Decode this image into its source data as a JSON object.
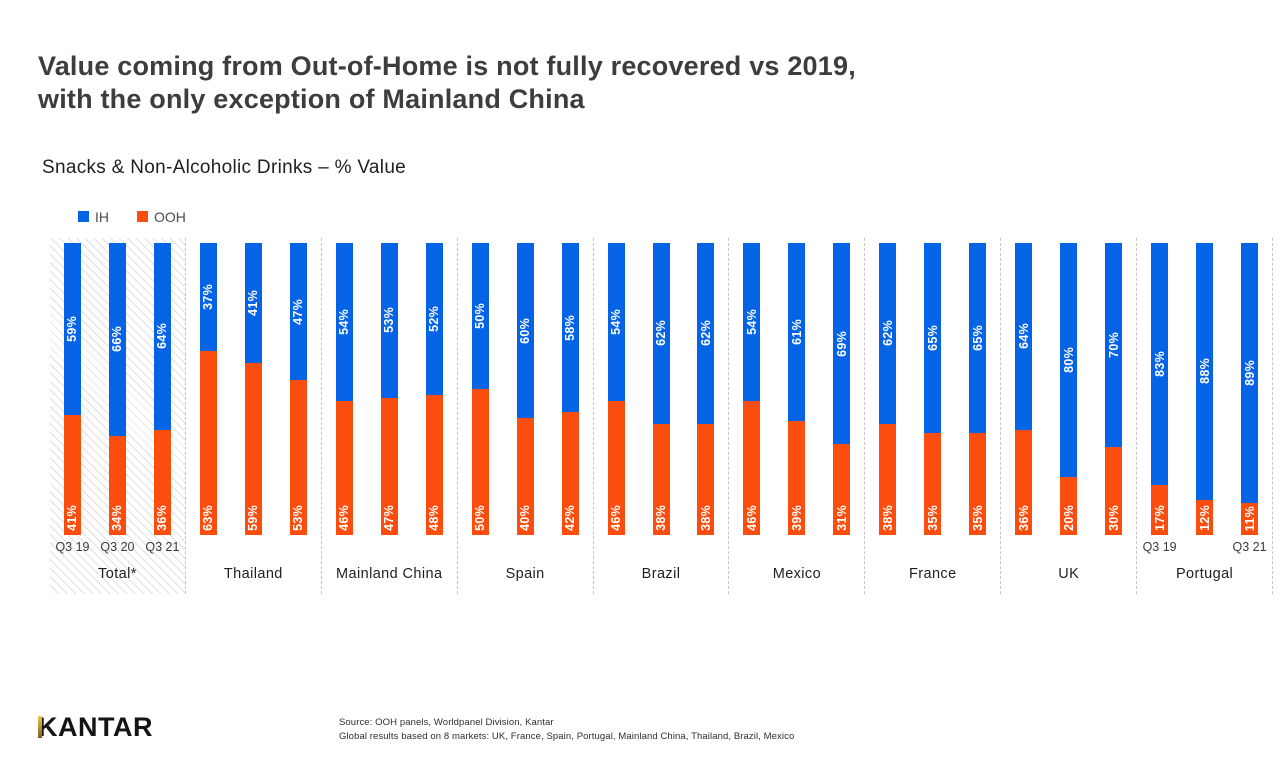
{
  "title": {
    "line1": "Value coming from Out-of-Home is not fully recovered vs 2019,",
    "line2": "with the only exception of Mainland China"
  },
  "subtitle": "Snacks & Non-Alcoholic Drinks – % Value",
  "legend": {
    "ih_label": "IH",
    "ooh_label": "OOH"
  },
  "colors": {
    "ih_blue": "#0563e6",
    "ooh_orange": "#fb4d0d",
    "hatch_gray": "#e0e0e0",
    "separator_gray": "#c5c5c5"
  },
  "chart_data": {
    "type": "bar",
    "stacked": true,
    "unit": "%",
    "ylim": [
      0,
      100
    ],
    "legend_position": "top-left",
    "series_names": [
      "IH",
      "OOH"
    ],
    "quarters": [
      "Q3 19",
      "Q3 20",
      "Q3 21"
    ],
    "groups": [
      {
        "label": "Total*",
        "hatched": true,
        "quarter_labels": [
          "Q3 19",
          "Q3 20",
          "Q3 21"
        ],
        "ih": [
          59,
          66,
          64
        ],
        "ooh": [
          41,
          34,
          36
        ]
      },
      {
        "label": "Thailand",
        "hatched": false,
        "quarter_labels": [
          "",
          "",
          ""
        ],
        "ih": [
          37,
          41,
          47
        ],
        "ooh": [
          63,
          59,
          53
        ]
      },
      {
        "label": "Mainland China",
        "hatched": false,
        "quarter_labels": [
          "",
          "",
          ""
        ],
        "ih": [
          54,
          53,
          52
        ],
        "ooh": [
          46,
          47,
          48
        ]
      },
      {
        "label": "Spain",
        "hatched": false,
        "quarter_labels": [
          "",
          "",
          ""
        ],
        "ih": [
          50,
          60,
          58
        ],
        "ooh": [
          50,
          40,
          42
        ]
      },
      {
        "label": "Brazil",
        "hatched": false,
        "quarter_labels": [
          "",
          "",
          ""
        ],
        "ih": [
          54,
          62,
          62
        ],
        "ooh": [
          46,
          38,
          38
        ]
      },
      {
        "label": "Mexico",
        "hatched": false,
        "quarter_labels": [
          "",
          "",
          ""
        ],
        "ih": [
          54,
          61,
          69
        ],
        "ooh": [
          46,
          39,
          31
        ]
      },
      {
        "label": "France",
        "hatched": false,
        "quarter_labels": [
          "",
          "",
          ""
        ],
        "ih": [
          62,
          65,
          65
        ],
        "ooh": [
          38,
          35,
          35
        ]
      },
      {
        "label": "UK",
        "hatched": false,
        "quarter_labels": [
          "",
          "",
          ""
        ],
        "ih": [
          64,
          80,
          70
        ],
        "ooh": [
          36,
          20,
          30
        ]
      },
      {
        "label": "Portugal",
        "hatched": false,
        "quarter_labels": [
          "Q3 19",
          "",
          "Q3 21"
        ],
        "ih": [
          83,
          88,
          89
        ],
        "ooh": [
          17,
          12,
          11
        ]
      }
    ]
  },
  "footer": {
    "logo_text": "KANTAR",
    "source_line1": "Source: OOH panels, Worldpanel Division, Kantar",
    "source_line2": "Global results based on 8 markets: UK, France, Spain, Portugal, Mainland China, Thailand, Brazil, Mexico"
  }
}
